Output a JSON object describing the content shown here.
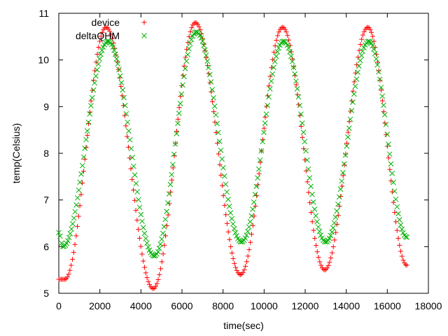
{
  "chart_data": {
    "type": "scatter",
    "title": "",
    "xlabel": "time(sec)",
    "ylabel": "temp(Celsius)",
    "xlim": [
      0,
      18000
    ],
    "ylim": [
      5,
      11
    ],
    "xticks": [
      0,
      2000,
      4000,
      6000,
      8000,
      10000,
      12000,
      14000,
      16000,
      18000
    ],
    "yticks": [
      5,
      6,
      7,
      8,
      9,
      10,
      11
    ],
    "grid": false,
    "legend_position": "top-left",
    "series": [
      {
        "name": "device",
        "marker": "plus",
        "color": "#ff0000",
        "x": [
          0,
          300,
          2300,
          4600,
          6650,
          8850,
          10900,
          12950,
          15050,
          16950
        ],
        "y": [
          5.3,
          5.3,
          10.7,
          5.1,
          10.8,
          5.4,
          10.7,
          5.5,
          10.7,
          5.6
        ]
      },
      {
        "name": "deltaQHM",
        "marker": "cross",
        "color": "#00b000",
        "x": [
          0,
          200,
          2400,
          4650,
          6700,
          8900,
          10950,
          13000,
          15100,
          16950
        ],
        "y": [
          6.3,
          6.0,
          10.4,
          5.8,
          10.6,
          6.1,
          10.4,
          6.1,
          10.4,
          6.2
        ]
      }
    ]
  }
}
